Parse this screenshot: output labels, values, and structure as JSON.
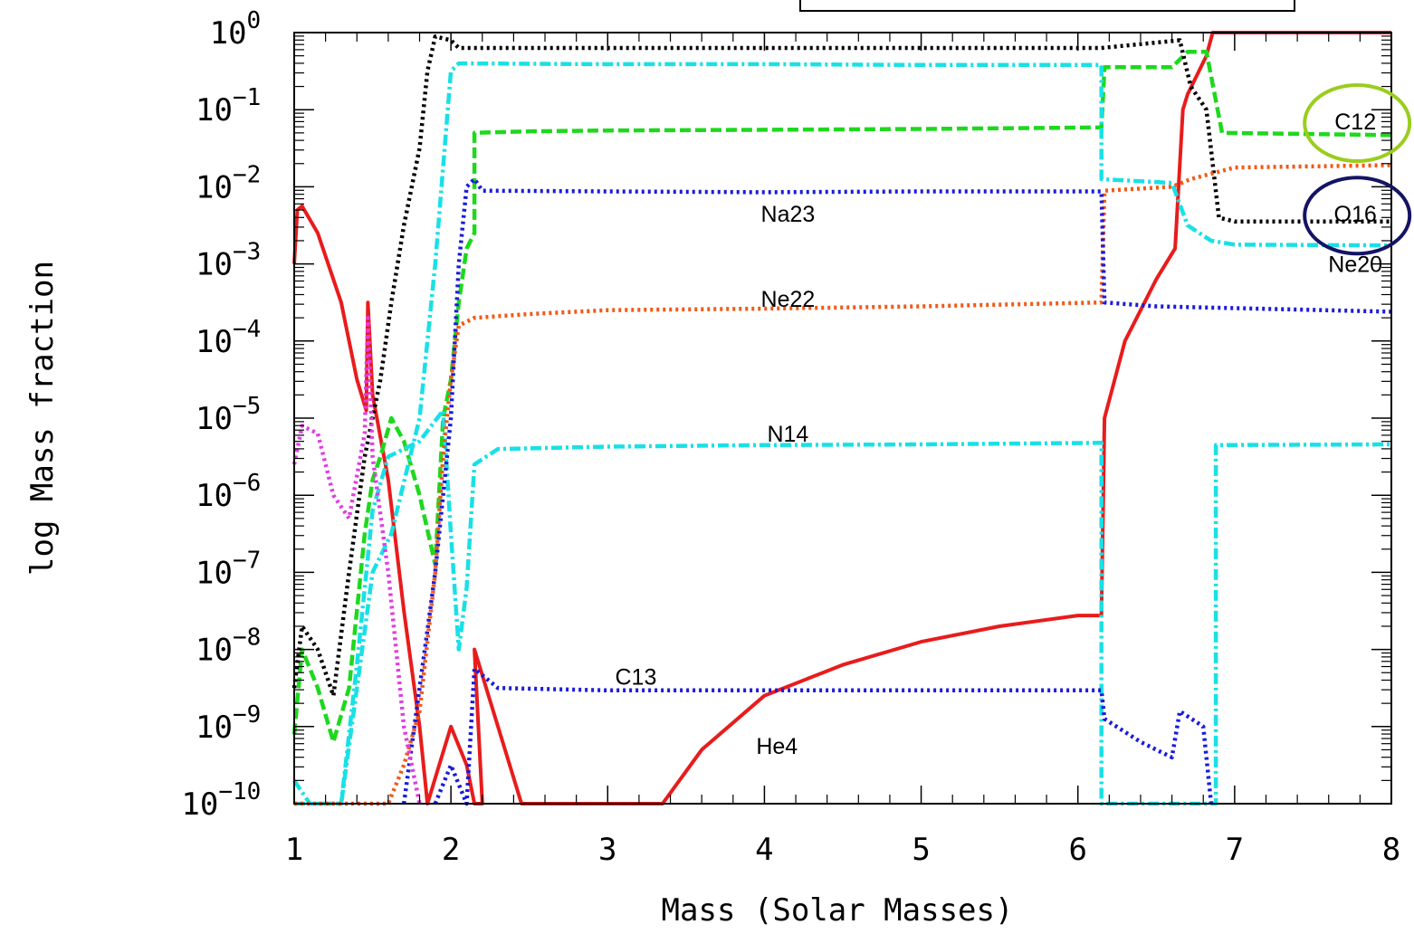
{
  "chart_data": {
    "type": "line",
    "title": "",
    "xlabel": "Mass (Solar Masses)",
    "ylabel": "log Mass fraction",
    "xlim": [
      1,
      8
    ],
    "ylim_log10": [
      -10,
      0
    ],
    "y_scale": "log",
    "grid": false,
    "x_ticks": [
      "1",
      "2",
      "3",
      "4",
      "5",
      "6",
      "7",
      "8"
    ],
    "y_ticks": [
      {
        "base": "10",
        "exp": "0"
      },
      {
        "base": "10",
        "exp": "−1"
      },
      {
        "base": "10",
        "exp": "−2"
      },
      {
        "base": "10",
        "exp": "−3"
      },
      {
        "base": "10",
        "exp": "−4"
      },
      {
        "base": "10",
        "exp": "−5"
      },
      {
        "base": "10",
        "exp": "−6"
      },
      {
        "base": "10",
        "exp": "−7"
      },
      {
        "base": "10",
        "exp": "−8"
      },
      {
        "base": "10",
        "exp": "−9"
      },
      {
        "base": "10",
        "exp": "−10"
      }
    ],
    "series": [
      {
        "name": "He4",
        "color": "#e81c1c",
        "style": "solid",
        "points": [
          [
            1.0,
            -3.0
          ],
          [
            1.02,
            -2.3
          ],
          [
            1.05,
            -2.25
          ],
          [
            1.15,
            -2.6
          ],
          [
            1.3,
            -3.5
          ],
          [
            1.4,
            -4.5
          ],
          [
            1.46,
            -4.9
          ],
          [
            1.47,
            -3.5
          ],
          [
            1.5,
            -4.7
          ],
          [
            1.6,
            -5.8
          ],
          [
            1.7,
            -7.5
          ],
          [
            1.8,
            -9.0
          ],
          [
            1.85,
            -10.0
          ],
          [
            2.0,
            -9.0
          ],
          [
            2.1,
            -9.5
          ],
          [
            2.15,
            -10.0
          ],
          [
            2.2,
            -10.0
          ],
          [
            2.15,
            -8.0
          ],
          [
            2.3,
            -9.0
          ],
          [
            2.45,
            -10.0
          ],
          [
            3.35,
            -10.0
          ],
          [
            3.6,
            -9.3
          ],
          [
            4.0,
            -8.6
          ],
          [
            4.5,
            -8.2
          ],
          [
            5.0,
            -7.9
          ],
          [
            5.5,
            -7.7
          ],
          [
            6.0,
            -7.56
          ],
          [
            6.15,
            -7.56
          ],
          [
            6.17,
            -5.0
          ],
          [
            6.3,
            -4.0
          ],
          [
            6.5,
            -3.2
          ],
          [
            6.62,
            -2.8
          ],
          [
            6.67,
            -1.0
          ],
          [
            6.7,
            -0.8
          ],
          [
            6.82,
            -0.3
          ],
          [
            6.86,
            0.0
          ],
          [
            8.0,
            0.0
          ]
        ]
      },
      {
        "name": "C12",
        "color": "#1ed81e",
        "style": "dashed",
        "points": [
          [
            1.0,
            -9.1
          ],
          [
            1.05,
            -8.0
          ],
          [
            1.15,
            -8.5
          ],
          [
            1.25,
            -9.2
          ],
          [
            1.35,
            -8.5
          ],
          [
            1.45,
            -6.5
          ],
          [
            1.5,
            -5.8
          ],
          [
            1.55,
            -5.5
          ],
          [
            1.62,
            -5.0
          ],
          [
            1.7,
            -5.3
          ],
          [
            1.8,
            -6.0
          ],
          [
            1.9,
            -6.9
          ],
          [
            1.95,
            -5.0
          ],
          [
            2.0,
            -4.5
          ],
          [
            2.05,
            -3.5
          ],
          [
            2.1,
            -2.8
          ],
          [
            2.15,
            -2.6
          ],
          [
            2.15,
            -1.3
          ],
          [
            2.5,
            -1.28
          ],
          [
            3.0,
            -1.27
          ],
          [
            4.0,
            -1.26
          ],
          [
            5.0,
            -1.25
          ],
          [
            6.15,
            -1.23
          ],
          [
            6.17,
            -0.45
          ],
          [
            6.6,
            -0.45
          ],
          [
            6.7,
            -0.25
          ],
          [
            6.82,
            -0.25
          ],
          [
            6.92,
            -1.3
          ],
          [
            8.0,
            -1.33
          ]
        ]
      },
      {
        "name": "O16",
        "color": "#000000",
        "style": "dotted",
        "points": [
          [
            1.0,
            -8.5
          ],
          [
            1.05,
            -7.7
          ],
          [
            1.15,
            -8.0
          ],
          [
            1.25,
            -8.6
          ],
          [
            1.35,
            -7.0
          ],
          [
            1.45,
            -5.5
          ],
          [
            1.55,
            -4.5
          ],
          [
            1.62,
            -3.5
          ],
          [
            1.7,
            -2.5
          ],
          [
            1.8,
            -1.5
          ],
          [
            1.85,
            -0.5
          ],
          [
            1.9,
            -0.05
          ],
          [
            2.0,
            -0.1
          ],
          [
            2.05,
            -0.2
          ],
          [
            3.0,
            -0.2
          ],
          [
            4.0,
            -0.2
          ],
          [
            5.0,
            -0.2
          ],
          [
            6.15,
            -0.2
          ],
          [
            6.65,
            -0.1
          ],
          [
            6.72,
            -0.7
          ],
          [
            6.82,
            -1.0
          ],
          [
            6.9,
            -2.4
          ],
          [
            7.0,
            -2.45
          ],
          [
            8.0,
            -2.45
          ]
        ]
      },
      {
        "name": "Ne20",
        "color": "#19e0e6",
        "style": "dashdot",
        "points": [
          [
            1.0,
            -9.7
          ],
          [
            1.1,
            -10.0
          ],
          [
            1.3,
            -10.0
          ],
          [
            1.4,
            -8.5
          ],
          [
            1.5,
            -7.0
          ],
          [
            1.62,
            -6.5
          ],
          [
            1.8,
            -5.0
          ],
          [
            1.9,
            -3.0
          ],
          [
            2.0,
            -0.5
          ],
          [
            2.05,
            -0.4
          ],
          [
            3.0,
            -0.41
          ],
          [
            4.0,
            -0.41
          ],
          [
            5.0,
            -0.42
          ],
          [
            6.15,
            -0.42
          ],
          [
            6.15,
            -1.9
          ],
          [
            6.6,
            -1.95
          ],
          [
            6.7,
            -2.5
          ],
          [
            6.85,
            -2.7
          ],
          [
            7.0,
            -2.75
          ],
          [
            8.0,
            -2.76
          ]
        ]
      },
      {
        "name": "N14",
        "color": "#19e0e6",
        "style": "dashdot",
        "points": [
          [
            1.0,
            -10.0
          ],
          [
            1.3,
            -10.0
          ],
          [
            1.4,
            -8.2
          ],
          [
            1.5,
            -6.2
          ],
          [
            1.6,
            -5.5
          ],
          [
            1.8,
            -5.3
          ],
          [
            1.95,
            -4.9
          ],
          [
            2.0,
            -6.5
          ],
          [
            2.05,
            -8.0
          ],
          [
            2.1,
            -7.2
          ],
          [
            2.15,
            -5.6
          ],
          [
            2.3,
            -5.4
          ],
          [
            3.0,
            -5.37
          ],
          [
            4.0,
            -5.35
          ],
          [
            5.0,
            -5.34
          ],
          [
            6.15,
            -5.32
          ],
          [
            6.15,
            -10.0
          ],
          [
            6.88,
            -10.0
          ],
          [
            6.88,
            -5.35
          ],
          [
            8.0,
            -5.34
          ]
        ]
      },
      {
        "name": "Ne22",
        "color": "#f15a16",
        "style": "dotted",
        "points": [
          [
            1.0,
            -10.0
          ],
          [
            1.6,
            -10.0
          ],
          [
            1.7,
            -9.5
          ],
          [
            1.8,
            -8.8
          ],
          [
            1.9,
            -7.0
          ],
          [
            1.95,
            -5.5
          ],
          [
            2.0,
            -4.5
          ],
          [
            2.05,
            -3.8
          ],
          [
            2.15,
            -3.7
          ],
          [
            2.5,
            -3.65
          ],
          [
            3.0,
            -3.6
          ],
          [
            4.0,
            -3.58
          ],
          [
            5.0,
            -3.55
          ],
          [
            6.15,
            -3.5
          ],
          [
            6.17,
            -2.05
          ],
          [
            6.6,
            -2.0
          ],
          [
            6.72,
            -1.9
          ],
          [
            7.0,
            -1.75
          ],
          [
            8.0,
            -1.72
          ]
        ]
      },
      {
        "name": "Na23",
        "color": "#1b1bdc",
        "style": "dotted",
        "points": [
          [
            1.7,
            -10.0
          ],
          [
            1.8,
            -8.5
          ],
          [
            1.9,
            -7.0
          ],
          [
            2.0,
            -5.0
          ],
          [
            2.05,
            -3.0
          ],
          [
            2.1,
            -2.0
          ],
          [
            2.15,
            -1.9
          ],
          [
            2.2,
            -2.05
          ],
          [
            3.0,
            -2.06
          ],
          [
            4.0,
            -2.07
          ],
          [
            5.0,
            -2.06
          ],
          [
            6.15,
            -2.06
          ],
          [
            6.17,
            -3.5
          ],
          [
            6.5,
            -3.55
          ],
          [
            8.0,
            -3.62
          ]
        ]
      },
      {
        "name": "C13",
        "color": "#1b1bdc",
        "style": "dotted",
        "points": [
          [
            1.9,
            -10.0
          ],
          [
            2.0,
            -9.5
          ],
          [
            2.1,
            -10.0
          ],
          [
            2.15,
            -8.25
          ],
          [
            2.3,
            -8.5
          ],
          [
            3.0,
            -8.53
          ],
          [
            4.0,
            -8.53
          ],
          [
            5.0,
            -8.53
          ],
          [
            6.15,
            -8.53
          ],
          [
            6.17,
            -8.9
          ],
          [
            6.4,
            -9.2
          ],
          [
            6.6,
            -9.4
          ],
          [
            6.65,
            -8.8
          ],
          [
            6.8,
            -9.0
          ],
          [
            6.85,
            -10.0
          ]
        ]
      },
      {
        "name": "",
        "color": "#e23ce2",
        "style": "dotted",
        "points": [
          [
            1.0,
            -5.6
          ],
          [
            1.05,
            -5.1
          ],
          [
            1.15,
            -5.2
          ],
          [
            1.25,
            -6.0
          ],
          [
            1.35,
            -6.3
          ],
          [
            1.45,
            -5.2
          ],
          [
            1.47,
            -3.7
          ],
          [
            1.5,
            -5.5
          ],
          [
            1.6,
            -7.0
          ],
          [
            1.7,
            -9.0
          ],
          [
            1.8,
            -10.0
          ]
        ]
      }
    ],
    "labels": [
      {
        "text": "Na23",
        "x": 4.15,
        "y": -2.35
      },
      {
        "text": "Ne22",
        "x": 4.15,
        "y": -3.45
      },
      {
        "text": "N14",
        "x": 4.15,
        "y": -5.2
      },
      {
        "text": "C13",
        "x": 3.18,
        "y": -8.35
      },
      {
        "text": "He4",
        "x": 4.08,
        "y": -9.25
      },
      {
        "text": "C12",
        "x": 7.77,
        "y": -1.15
      },
      {
        "text": "O16",
        "x": 7.77,
        "y": -2.35
      },
      {
        "text": "Ne20",
        "x": 7.77,
        "y": -3.0
      }
    ],
    "annotations": [
      {
        "shape": "ellipse",
        "target": "C12",
        "color": "#9acd1e"
      },
      {
        "shape": "ellipse",
        "target": "O16",
        "color": "#141464"
      }
    ],
    "legend_box": "top (partially visible, empty)"
  }
}
